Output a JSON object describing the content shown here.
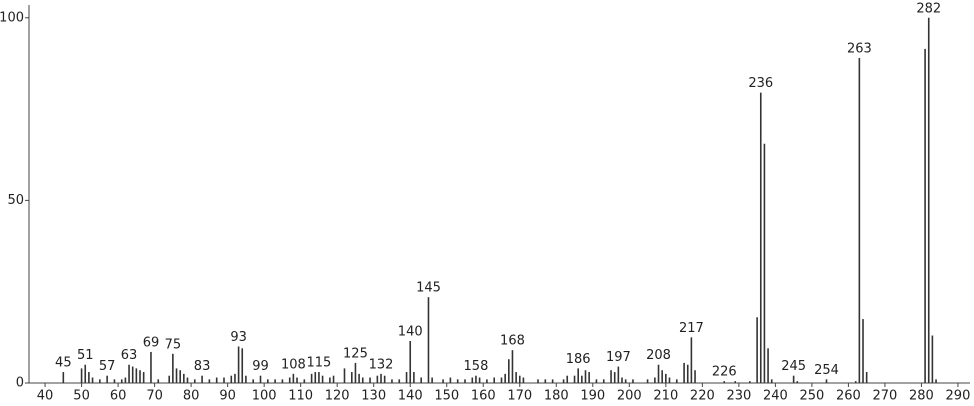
{
  "chart_data": {
    "type": "stick",
    "x": [
      45,
      50,
      51,
      52,
      53,
      55,
      57,
      59,
      61,
      62,
      63,
      64,
      65,
      66,
      67,
      69,
      71,
      74,
      75,
      76,
      77,
      78,
      79,
      81,
      83,
      85,
      87,
      89,
      91,
      92,
      93,
      94,
      95,
      97,
      99,
      101,
      103,
      105,
      107,
      108,
      109,
      111,
      113,
      114,
      115,
      116,
      118,
      119,
      122,
      124,
      125,
      126,
      127,
      129,
      131,
      132,
      133,
      135,
      137,
      139,
      140,
      141,
      143,
      145,
      146,
      149,
      151,
      153,
      155,
      157,
      158,
      159,
      161,
      163,
      165,
      166,
      167,
      168,
      169,
      170,
      171,
      175,
      177,
      179,
      182,
      183,
      185,
      186,
      187,
      188,
      189,
      191,
      193,
      195,
      196,
      197,
      198,
      199,
      201,
      205,
      207,
      208,
      209,
      210,
      211,
      213,
      215,
      216,
      217,
      218,
      226,
      229,
      233,
      235,
      236,
      237,
      238,
      239,
      245,
      246,
      254,
      262,
      263,
      264,
      265,
      281,
      282,
      283,
      284
    ],
    "values": [
      3,
      4,
      5,
      3,
      1.5,
      1,
      2,
      1,
      1,
      1.5,
      5,
      4.5,
      4,
      3.5,
      3,
      8.5,
      1,
      2,
      8,
      4,
      3.5,
      2.5,
      1.5,
      1,
      2,
      1,
      1.5,
      1.5,
      2,
      2.5,
      10,
      9.5,
      2,
      1,
      2,
      1,
      1,
      1,
      1.5,
      2.5,
      1.5,
      1,
      2.5,
      3,
      3,
      2,
      1.5,
      2,
      4,
      3,
      5.5,
      2.5,
      1.5,
      1.5,
      2,
      2.5,
      2,
      1,
      1,
      3,
      11.5,
      3,
      1.5,
      23.5,
      1.5,
      1,
      1.5,
      1,
      1,
      1.5,
      2,
      1.5,
      1,
      1.5,
      1.5,
      2.5,
      6.5,
      9,
      3,
      2,
      1.5,
      1,
      1,
      1,
      1,
      2,
      2,
      4,
      2,
      3.5,
      3,
      1,
      1,
      3.5,
      3,
      4.5,
      1.5,
      1,
      1,
      1,
      1.5,
      5,
      3.5,
      2.5,
      1.5,
      1,
      5.5,
      5,
      12.5,
      3.5,
      0.5,
      0.5,
      0.5,
      18,
      79.5,
      65.5,
      9.5,
      1,
      2,
      0.5,
      1,
      0.5,
      89,
      17.5,
      3,
      91.5,
      100,
      13,
      1
    ],
    "point_labels": [
      45,
      null,
      51,
      null,
      null,
      null,
      57,
      null,
      null,
      null,
      63,
      null,
      null,
      null,
      null,
      69,
      null,
      null,
      75,
      null,
      null,
      null,
      null,
      null,
      83,
      null,
      null,
      null,
      null,
      null,
      93,
      null,
      null,
      null,
      99,
      null,
      null,
      null,
      null,
      108,
      null,
      null,
      null,
      null,
      115,
      null,
      null,
      null,
      null,
      null,
      125,
      null,
      null,
      null,
      null,
      132,
      null,
      null,
      null,
      null,
      140,
      null,
      null,
      145,
      null,
      null,
      null,
      null,
      null,
      null,
      158,
      null,
      null,
      null,
      null,
      null,
      null,
      168,
      null,
      null,
      null,
      null,
      null,
      null,
      null,
      null,
      null,
      186,
      null,
      null,
      null,
      null,
      null,
      null,
      null,
      197,
      null,
      null,
      null,
      null,
      null,
      208,
      null,
      null,
      null,
      null,
      null,
      null,
      217,
      null,
      226,
      null,
      null,
      null,
      236,
      null,
      null,
      null,
      245,
      null,
      254,
      null,
      263,
      null,
      null,
      null,
      282,
      null,
      null
    ],
    "color": "#333333",
    "xlim": [
      35.6,
      293.3
    ],
    "xticks": [
      40,
      50,
      60,
      70,
      80,
      90,
      100,
      110,
      120,
      130,
      140,
      150,
      160,
      170,
      180,
      190,
      200,
      210,
      220,
      230,
      240,
      250,
      260,
      270,
      280,
      290
    ],
    "ylim": [
      0,
      103.5
    ],
    "yticks": [
      0,
      50,
      100
    ]
  }
}
